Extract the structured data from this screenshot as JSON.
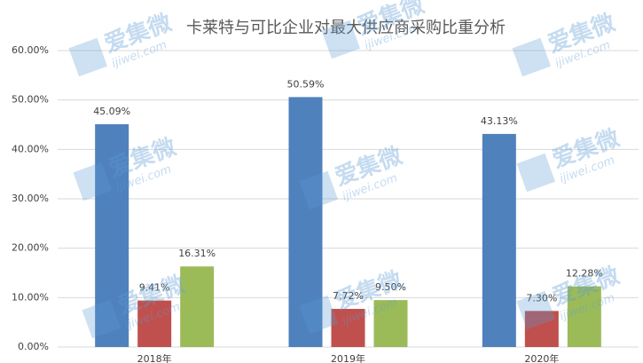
{
  "chart_data": {
    "type": "bar",
    "title": "卡莱特与可比企业对最大供应商采购比重分析",
    "categories": [
      "2018年",
      "2019年",
      "2020年"
    ],
    "series": [
      {
        "color": "#4f81bd",
        "values": [
          45.09,
          50.59,
          43.13
        ],
        "value_labels": [
          "45.09%",
          "50.59%",
          "43.13%"
        ]
      },
      {
        "color": "#c0504d",
        "values": [
          9.41,
          7.72,
          7.3
        ],
        "value_labels": [
          "9.41%",
          "7.72%",
          "7.30%"
        ]
      },
      {
        "color": "#9bbb59",
        "values": [
          16.31,
          9.5,
          12.28
        ],
        "value_labels": [
          "16.31%",
          "9.50%",
          "12.28%"
        ]
      }
    ],
    "ylim": [
      0,
      60
    ],
    "yticks": [
      {
        "value": 0,
        "label": "0.00%"
      },
      {
        "value": 10,
        "label": "10.00%"
      },
      {
        "value": 20,
        "label": "20.00%"
      },
      {
        "value": 30,
        "label": "30.00%"
      },
      {
        "value": 40,
        "label": "40.00%"
      },
      {
        "value": 50,
        "label": "50.00%"
      },
      {
        "value": 60,
        "label": "60.00%"
      }
    ],
    "grid": true,
    "watermark": {
      "brand": "爱集微",
      "site": "ijiwei.com"
    }
  }
}
